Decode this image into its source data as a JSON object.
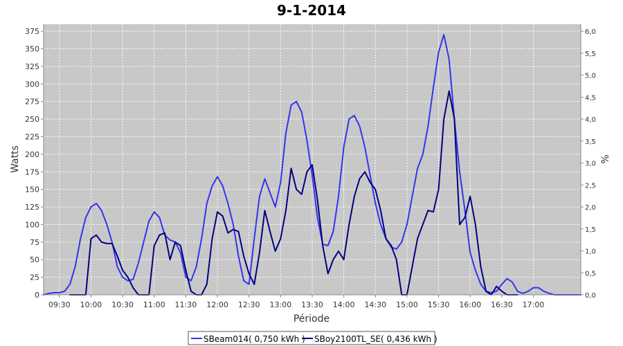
{
  "chart_data": {
    "type": "line",
    "title": "9-1-2014",
    "xlabel": "Période",
    "ylabel_left": "Watts",
    "ylabel_right": "%",
    "grid": true,
    "legend_position": "bottom",
    "x_ticks": [
      "09:30",
      "10:00",
      "10:30",
      "11:00",
      "11:30",
      "12:00",
      "12:30",
      "13:00",
      "13:30",
      "14:00",
      "14:30",
      "15:00",
      "15:30",
      "16:00",
      "16:30",
      "17:00"
    ],
    "y_left": {
      "min": 0,
      "max": 385,
      "ticks": [
        "0",
        "25",
        "50",
        "75",
        "100",
        "125",
        "150",
        "175",
        "200",
        "225",
        "250",
        "275",
        "300",
        "325",
        "350",
        "375"
      ]
    },
    "y_right": {
      "min": 0,
      "max": 6.16,
      "ticks": [
        "0,0",
        "0,5",
        "1,0",
        "1,5",
        "2,0",
        "2,5",
        "3,0",
        "3,5",
        "4,0",
        "4,5",
        "5,0",
        "5,5",
        "6,0"
      ]
    },
    "series": [
      {
        "name": "SBeam014",
        "legend_label": "SBeam014( 0,750 kWh )",
        "color": "#3333ee",
        "points": [
          [
            "09:15",
            0
          ],
          [
            "09:20",
            2
          ],
          [
            "09:25",
            3
          ],
          [
            "09:30",
            3
          ],
          [
            "09:35",
            5
          ],
          [
            "09:40",
            15
          ],
          [
            "09:45",
            40
          ],
          [
            "09:50",
            80
          ],
          [
            "09:55",
            110
          ],
          [
            "10:00",
            125
          ],
          [
            "10:05",
            130
          ],
          [
            "10:10",
            120
          ],
          [
            "10:15",
            100
          ],
          [
            "10:20",
            75
          ],
          [
            "10:25",
            40
          ],
          [
            "10:30",
            25
          ],
          [
            "10:35",
            20
          ],
          [
            "10:40",
            22
          ],
          [
            "10:45",
            45
          ],
          [
            "10:50",
            75
          ],
          [
            "10:55",
            105
          ],
          [
            "11:00",
            118
          ],
          [
            "11:05",
            110
          ],
          [
            "11:10",
            85
          ],
          [
            "11:15",
            78
          ],
          [
            "11:20",
            75
          ],
          [
            "11:25",
            60
          ],
          [
            "11:30",
            25
          ],
          [
            "11:35",
            20
          ],
          [
            "11:40",
            40
          ],
          [
            "11:45",
            80
          ],
          [
            "11:50",
            130
          ],
          [
            "11:55",
            155
          ],
          [
            "12:00",
            168
          ],
          [
            "12:05",
            155
          ],
          [
            "12:10",
            130
          ],
          [
            "12:15",
            100
          ],
          [
            "12:20",
            55
          ],
          [
            "12:25",
            20
          ],
          [
            "12:30",
            15
          ],
          [
            "12:35",
            80
          ],
          [
            "12:40",
            140
          ],
          [
            "12:45",
            165
          ],
          [
            "12:50",
            145
          ],
          [
            "12:55",
            125
          ],
          [
            "13:00",
            160
          ],
          [
            "13:05",
            230
          ],
          [
            "13:10",
            270
          ],
          [
            "13:15",
            275
          ],
          [
            "13:20",
            260
          ],
          [
            "13:25",
            220
          ],
          [
            "13:30",
            170
          ],
          [
            "13:35",
            110
          ],
          [
            "13:40",
            72
          ],
          [
            "13:45",
            70
          ],
          [
            "13:50",
            90
          ],
          [
            "13:55",
            140
          ],
          [
            "14:00",
            210
          ],
          [
            "14:05",
            250
          ],
          [
            "14:10",
            255
          ],
          [
            "14:15",
            240
          ],
          [
            "14:20",
            210
          ],
          [
            "14:25",
            170
          ],
          [
            "14:30",
            130
          ],
          [
            "14:35",
            100
          ],
          [
            "14:40",
            80
          ],
          [
            "14:45",
            68
          ],
          [
            "14:50",
            65
          ],
          [
            "14:55",
            75
          ],
          [
            "15:00",
            100
          ],
          [
            "15:05",
            140
          ],
          [
            "15:10",
            180
          ],
          [
            "15:15",
            200
          ],
          [
            "15:20",
            240
          ],
          [
            "15:25",
            295
          ],
          [
            "15:30",
            345
          ],
          [
            "15:35",
            370
          ],
          [
            "15:40",
            335
          ],
          [
            "15:45",
            250
          ],
          [
            "15:50",
            175
          ],
          [
            "15:55",
            120
          ],
          [
            "16:00",
            60
          ],
          [
            "16:05",
            35
          ],
          [
            "16:10",
            15
          ],
          [
            "16:15",
            5
          ],
          [
            "16:20",
            3
          ],
          [
            "16:25",
            5
          ],
          [
            "16:30",
            15
          ],
          [
            "16:35",
            23
          ],
          [
            "16:40",
            18
          ],
          [
            "16:45",
            5
          ],
          [
            "16:50",
            2
          ],
          [
            "16:55",
            5
          ],
          [
            "17:00",
            10
          ],
          [
            "17:05",
            10
          ],
          [
            "17:10",
            5
          ],
          [
            "17:15",
            2
          ],
          [
            "17:20",
            0
          ],
          [
            "17:30",
            0
          ],
          [
            "17:45",
            0
          ]
        ]
      },
      {
        "name": "SBoy2100TL_SE",
        "legend_label": "SBoy2100TL_SE( 0,436 kWh )",
        "color": "#000080",
        "points": [
          [
            "09:40",
            0
          ],
          [
            "09:55",
            0
          ],
          [
            "10:00",
            80
          ],
          [
            "10:05",
            85
          ],
          [
            "10:10",
            75
          ],
          [
            "10:15",
            73
          ],
          [
            "10:20",
            73
          ],
          [
            "10:25",
            55
          ],
          [
            "10:30",
            35
          ],
          [
            "10:35",
            25
          ],
          [
            "10:40",
            10
          ],
          [
            "10:45",
            0
          ],
          [
            "10:50",
            0
          ],
          [
            "10:55",
            0
          ],
          [
            "11:00",
            70
          ],
          [
            "11:05",
            85
          ],
          [
            "11:10",
            88
          ],
          [
            "11:15",
            50
          ],
          [
            "11:20",
            75
          ],
          [
            "11:25",
            70
          ],
          [
            "11:30",
            35
          ],
          [
            "11:35",
            5
          ],
          [
            "11:40",
            0
          ],
          [
            "11:45",
            0
          ],
          [
            "11:50",
            15
          ],
          [
            "11:55",
            80
          ],
          [
            "12:00",
            118
          ],
          [
            "12:05",
            112
          ],
          [
            "12:10",
            88
          ],
          [
            "12:15",
            93
          ],
          [
            "12:20",
            90
          ],
          [
            "12:25",
            55
          ],
          [
            "12:30",
            30
          ],
          [
            "12:35",
            15
          ],
          [
            "12:40",
            60
          ],
          [
            "12:45",
            120
          ],
          [
            "12:50",
            90
          ],
          [
            "12:55",
            62
          ],
          [
            "13:00",
            80
          ],
          [
            "13:05",
            120
          ],
          [
            "13:10",
            180
          ],
          [
            "13:15",
            150
          ],
          [
            "13:20",
            143
          ],
          [
            "13:25",
            175
          ],
          [
            "13:30",
            185
          ],
          [
            "13:35",
            135
          ],
          [
            "13:40",
            70
          ],
          [
            "13:45",
            30
          ],
          [
            "13:50",
            50
          ],
          [
            "13:55",
            62
          ],
          [
            "14:00",
            50
          ],
          [
            "14:05",
            100
          ],
          [
            "14:10",
            140
          ],
          [
            "14:15",
            165
          ],
          [
            "14:20",
            175
          ],
          [
            "14:25",
            160
          ],
          [
            "14:30",
            150
          ],
          [
            "14:35",
            120
          ],
          [
            "14:40",
            80
          ],
          [
            "14:45",
            70
          ],
          [
            "14:50",
            50
          ],
          [
            "14:55",
            0
          ],
          [
            "15:00",
            0
          ],
          [
            "15:05",
            40
          ],
          [
            "15:10",
            80
          ],
          [
            "15:15",
            100
          ],
          [
            "15:20",
            120
          ],
          [
            "15:25",
            118
          ],
          [
            "15:30",
            150
          ],
          [
            "15:35",
            250
          ],
          [
            "15:40",
            290
          ],
          [
            "15:45",
            250
          ],
          [
            "15:50",
            100
          ],
          [
            "15:55",
            110
          ],
          [
            "16:00",
            140
          ],
          [
            "16:05",
            100
          ],
          [
            "16:10",
            40
          ],
          [
            "16:15",
            5
          ],
          [
            "16:20",
            0
          ],
          [
            "16:25",
            12
          ],
          [
            "16:30",
            5
          ],
          [
            "16:35",
            0
          ],
          [
            "16:45",
            0
          ]
        ]
      }
    ]
  }
}
